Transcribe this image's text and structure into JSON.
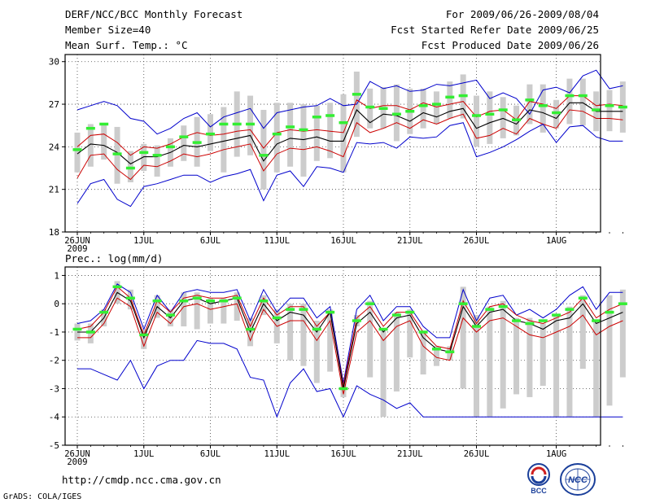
{
  "header": {
    "title": "DERF/NCC/BCC Monthly Forecast",
    "member_size": "Member Size=40",
    "variable": "Mean Surf. Temp.: °C",
    "forecast_period": "For 2009/06/26-2009/08/04",
    "start_date": "Fcst Started Refer Date 2009/06/25",
    "produced_date": "Fcst Produced Date 2009/06/26"
  },
  "footer": {
    "url": "http://cmdp.ncc.cma.gov.cn",
    "credit": "GrADS: COLA/IGES",
    "logo_bcc": "BCC",
    "logo_ncc": "NCC"
  },
  "colors": {
    "envelope": "#0000cc",
    "spread": "#cc0000",
    "mean": "#000000",
    "obs": "#33ee33",
    "box": "#cccccc"
  },
  "chart_data": [
    {
      "type": "line",
      "title": "Mean Surf. Temp.: °C",
      "ylim": [
        18,
        30.5
      ],
      "yticks": [
        18,
        21,
        24,
        27,
        30
      ],
      "x_ticks": [
        {
          "day": 0,
          "label": "26JUN",
          "sub": "2009"
        },
        {
          "day": 5,
          "label": "1JUL"
        },
        {
          "day": 10,
          "label": "6JUL"
        },
        {
          "day": 15,
          "label": "11JUL"
        },
        {
          "day": 20,
          "label": "16JUL"
        },
        {
          "day": 25,
          "label": "21JUL"
        },
        {
          "day": 30,
          "label": "26JUL"
        },
        {
          "day": 36,
          "label": "1AUG"
        }
      ],
      "series": [
        {
          "name": "max",
          "values": [
            26.6,
            26.9,
            27.2,
            26.9,
            26.0,
            25.8,
            24.9,
            25.3,
            26.0,
            26.4,
            25.4,
            26.1,
            26.4,
            26.7,
            25.3,
            26.4,
            26.6,
            26.8,
            26.9,
            27.4,
            26.9,
            27.0,
            28.6,
            28.1,
            28.3,
            27.9,
            28.0,
            28.4,
            28.3,
            28.5,
            28.7,
            27.4,
            27.8,
            27.4,
            26.3,
            28.0,
            28.2,
            27.8,
            29.0,
            29.4,
            28.1,
            28.3
          ]
        },
        {
          "name": "upper",
          "values": [
            24.0,
            24.8,
            24.9,
            24.3,
            23.4,
            24.0,
            23.9,
            24.2,
            24.7,
            25.0,
            24.8,
            24.9,
            25.1,
            25.2,
            23.9,
            25.0,
            25.2,
            25.1,
            25.2,
            25.1,
            25.0,
            27.3,
            26.7,
            26.9,
            26.9,
            26.6,
            27.1,
            26.8,
            27.0,
            27.2,
            26.1,
            26.5,
            26.6,
            25.9,
            27.2,
            27.0,
            26.7,
            27.6,
            27.6,
            26.9,
            27.0,
            26.9
          ]
        },
        {
          "name": "mean",
          "values": [
            23.5,
            24.2,
            24.1,
            23.6,
            22.8,
            23.3,
            23.3,
            23.6,
            24.1,
            24.0,
            24.2,
            24.4,
            24.6,
            24.8,
            23.0,
            24.2,
            24.6,
            24.5,
            24.7,
            24.4,
            24.4,
            26.6,
            25.7,
            26.3,
            26.2,
            25.8,
            26.4,
            26.1,
            26.5,
            26.7,
            25.3,
            25.7,
            26.0,
            25.6,
            26.6,
            26.4,
            26.0,
            27.1,
            27.1,
            26.5,
            26.5,
            26.5
          ]
        },
        {
          "name": "lower",
          "values": [
            21.8,
            23.4,
            23.5,
            22.4,
            21.7,
            22.7,
            22.6,
            23.0,
            23.5,
            23.3,
            23.5,
            23.8,
            24.0,
            24.2,
            22.3,
            23.5,
            23.9,
            23.8,
            24.0,
            23.7,
            23.3,
            25.7,
            25.0,
            25.3,
            25.7,
            25.3,
            25.9,
            25.6,
            26.0,
            26.3,
            24.6,
            24.8,
            25.3,
            24.9,
            26.0,
            25.6,
            25.3,
            26.6,
            26.5,
            26.0,
            26.0,
            25.9
          ]
        },
        {
          "name": "min",
          "values": [
            20.0,
            21.4,
            21.7,
            20.3,
            19.8,
            21.2,
            21.4,
            21.7,
            22.0,
            22.0,
            21.5,
            21.9,
            22.1,
            22.4,
            20.2,
            22.0,
            22.3,
            21.2,
            22.6,
            22.5,
            22.2,
            24.3,
            24.2,
            24.3,
            23.9,
            24.7,
            24.6,
            24.7,
            25.5,
            25.7,
            23.3,
            23.6,
            24.0,
            24.5,
            25.1,
            25.6,
            24.3,
            25.4,
            25.5,
            24.7,
            24.4,
            24.4
          ]
        },
        {
          "name": "obs",
          "values": [
            23.8,
            25.3,
            25.6,
            23.5,
            22.5,
            23.6,
            23.4,
            24.0,
            24.7,
            24.3,
            24.9,
            25.6,
            25.6,
            25.6,
            23.4,
            24.9,
            25.4,
            25.2,
            26.1,
            26.2,
            25.7,
            27.7,
            26.8,
            26.7,
            26.3,
            26.5,
            26.9,
            27.0,
            27.5,
            27.6,
            26.2,
            26.3,
            26.6,
            25.9,
            27.3,
            26.9,
            26.4,
            27.6,
            27.6,
            26.6,
            26.9,
            26.8
          ]
        }
      ],
      "boxes": [
        [
          22.2,
          25.0
        ],
        [
          22.6,
          25.6
        ],
        [
          23.1,
          25.6
        ],
        [
          21.4,
          25.4
        ],
        [
          21.5,
          23.7
        ],
        [
          22.3,
          24.2
        ],
        [
          21.9,
          24.1
        ],
        [
          22.6,
          24.6
        ],
        [
          23.0,
          25.5
        ],
        [
          22.6,
          26.1
        ],
        [
          23.7,
          26.3
        ],
        [
          22.2,
          26.8
        ],
        [
          23.3,
          27.9
        ],
        [
          23.4,
          27.6
        ],
        [
          21.0,
          26.6
        ],
        [
          22.2,
          27.1
        ],
        [
          22.6,
          27.1
        ],
        [
          21.9,
          27.0
        ],
        [
          23.0,
          26.9
        ],
        [
          23.2,
          27.1
        ],
        [
          22.2,
          27.7
        ],
        [
          24.7,
          29.3
        ],
        [
          25.3,
          28.1
        ],
        [
          25.3,
          28.2
        ],
        [
          24.4,
          28.4
        ],
        [
          24.9,
          28.1
        ],
        [
          25.3,
          28.1
        ],
        [
          25.6,
          27.9
        ],
        [
          26.0,
          28.6
        ],
        [
          26.0,
          29.1
        ],
        [
          24.0,
          27.6
        ],
        [
          24.2,
          27.9
        ],
        [
          24.6,
          27.5
        ],
        [
          24.8,
          26.9
        ],
        [
          25.6,
          28.4
        ],
        [
          25.0,
          28.4
        ],
        [
          25.3,
          27.3
        ],
        [
          25.6,
          28.8
        ],
        [
          25.5,
          28.8
        ],
        [
          25.1,
          27.9
        ],
        [
          25.1,
          28.0
        ],
        [
          25.0,
          28.6
        ]
      ]
    },
    {
      "type": "line",
      "title": "Prec.: log(mm/d)",
      "ylim": [
        -5,
        1.3
      ],
      "yticks": [
        -5,
        -4,
        -3,
        -2,
        -1,
        0,
        1
      ],
      "x_ticks": [
        {
          "day": 0,
          "label": "26JUN",
          "sub": "2009"
        },
        {
          "day": 5,
          "label": "1JUL"
        },
        {
          "day": 10,
          "label": "6JUL"
        },
        {
          "day": 15,
          "label": "11JUL"
        },
        {
          "day": 20,
          "label": "16JUL"
        },
        {
          "day": 25,
          "label": "21JUL"
        },
        {
          "day": 30,
          "label": "26JUL"
        },
        {
          "day": 36,
          "label": "1AUG"
        }
      ],
      "series": [
        {
          "name": "max",
          "values": [
            -0.7,
            -0.6,
            -0.2,
            0.7,
            0.4,
            -0.9,
            0.3,
            -0.3,
            0.4,
            0.5,
            0.4,
            0.4,
            0.5,
            -0.6,
            0.5,
            -0.3,
            0.2,
            0.2,
            -0.5,
            -0.1,
            -2.8,
            -0.2,
            0.3,
            -0.6,
            -0.1,
            -0.1,
            -0.8,
            -1.2,
            -1.2,
            0.5,
            -0.6,
            0.2,
            0.3,
            -0.4,
            -0.2,
            -0.5,
            -0.2,
            0.3,
            0.6,
            -0.2,
            0.4,
            0.4
          ]
        },
        {
          "name": "upper",
          "values": [
            -0.9,
            -0.8,
            -0.3,
            0.6,
            0.2,
            -1.1,
            0.1,
            -0.3,
            0.2,
            0.3,
            0.2,
            0.2,
            0.3,
            -0.8,
            0.2,
            -0.4,
            -0.1,
            -0.1,
            -0.8,
            -0.3,
            -2.9,
            -0.5,
            -0.1,
            -0.8,
            -0.3,
            -0.3,
            -1.0,
            -1.5,
            -1.6,
            0.1,
            -0.7,
            -0.1,
            0.0,
            -0.4,
            -0.6,
            -0.7,
            -0.5,
            -0.3,
            0.2,
            -0.5,
            -0.2,
            0.0
          ]
        },
        {
          "name": "mean",
          "values": [
            -1.0,
            -1.0,
            -0.5,
            0.4,
            0.1,
            -1.2,
            -0.1,
            -0.5,
            0.1,
            0.2,
            0.0,
            0.1,
            0.2,
            -1.0,
            0.0,
            -0.6,
            -0.3,
            -0.4,
            -1.0,
            -0.3,
            -3.0,
            -0.7,
            -0.3,
            -1.0,
            -0.5,
            -0.4,
            -1.2,
            -1.6,
            -1.7,
            -0.1,
            -0.8,
            -0.3,
            -0.2,
            -0.6,
            -0.7,
            -0.9,
            -0.6,
            -0.5,
            0.0,
            -0.7,
            -0.5,
            -0.3
          ]
        },
        {
          "name": "lower",
          "values": [
            -1.2,
            -1.2,
            -0.7,
            0.2,
            -0.1,
            -1.5,
            -0.3,
            -0.7,
            -0.1,
            0.0,
            -0.2,
            -0.1,
            0.0,
            -1.3,
            -0.2,
            -0.8,
            -0.6,
            -0.6,
            -1.3,
            -0.6,
            -3.2,
            -1.0,
            -0.6,
            -1.3,
            -0.8,
            -0.6,
            -1.5,
            -1.9,
            -2.0,
            -0.5,
            -1.0,
            -0.6,
            -0.5,
            -0.8,
            -1.1,
            -1.2,
            -1.0,
            -0.8,
            -0.4,
            -1.1,
            -0.8,
            -0.6
          ]
        },
        {
          "name": "min",
          "values": [
            -2.3,
            -2.3,
            -2.5,
            -2.7,
            -2.0,
            -3.0,
            -2.2,
            -2.0,
            -2.0,
            -1.3,
            -1.4,
            -1.4,
            -1.6,
            -2.6,
            -2.7,
            -4.0,
            -2.8,
            -2.3,
            -3.1,
            -3.0,
            -4.0,
            -2.9,
            -3.2,
            -3.4,
            -3.7,
            -3.5,
            -4.0,
            -4.0,
            -4.0,
            -4.0,
            -4.0,
            -4.0,
            -4.0,
            -4.0,
            -4.0,
            -4.0,
            -4.0,
            -4.0,
            -4.0,
            -4.0,
            -4.0,
            -4.0
          ]
        },
        {
          "name": "obs",
          "values": [
            -0.9,
            -1.0,
            -0.3,
            0.6,
            0.2,
            -1.1,
            0.1,
            -0.4,
            0.1,
            0.2,
            0.1,
            0.1,
            0.2,
            -0.9,
            0.1,
            -0.5,
            -0.2,
            -0.2,
            -0.9,
            -0.3,
            -3.0,
            -0.6,
            0.0,
            -0.9,
            -0.4,
            -0.3,
            -1.0,
            -1.6,
            -1.7,
            0.0,
            -0.8,
            -0.2,
            -0.1,
            -0.6,
            -0.7,
            -0.6,
            -0.4,
            -0.2,
            0.2,
            -0.6,
            -0.3,
            0.0
          ]
        }
      ],
      "boxes": [
        [
          -1.3,
          -0.7
        ],
        [
          -1.4,
          -0.7
        ],
        [
          -0.8,
          -0.2
        ],
        [
          0.0,
          0.8
        ],
        [
          -0.2,
          0.5
        ],
        [
          -1.6,
          -0.9
        ],
        [
          -0.5,
          0.3
        ],
        [
          -0.8,
          -0.2
        ],
        [
          -0.8,
          0.4
        ],
        [
          -0.9,
          0.4
        ],
        [
          -0.7,
          0.2
        ],
        [
          -0.7,
          0.2
        ],
        [
          -0.6,
          0.4
        ],
        [
          -1.5,
          -0.5
        ],
        [
          -0.4,
          0.3
        ],
        [
          -1.4,
          -0.2
        ],
        [
          -2.0,
          0.0
        ],
        [
          -2.2,
          0.0
        ],
        [
          -2.8,
          -0.6
        ],
        [
          -2.4,
          -0.2
        ],
        [
          -3.3,
          -2.7
        ],
        [
          -0.8,
          -0.4
        ],
        [
          -2.6,
          0.1
        ],
        [
          -4.0,
          -0.9
        ],
        [
          -3.1,
          -0.3
        ],
        [
          -1.9,
          -0.2
        ],
        [
          -2.5,
          -1.0
        ],
        [
          -2.2,
          -1.5
        ],
        [
          -2.0,
          -1.5
        ],
        [
          -3.0,
          0.6
        ],
        [
          -4.0,
          -0.4
        ],
        [
          -4.0,
          -0.1
        ],
        [
          -3.7,
          0.1
        ],
        [
          -3.2,
          -0.5
        ],
        [
          -3.3,
          -0.5
        ],
        [
          -2.9,
          -0.7
        ],
        [
          -4.0,
          -0.4
        ],
        [
          -4.0,
          -0.1
        ],
        [
          -2.3,
          0.3
        ],
        [
          -4.0,
          -0.6
        ],
        [
          -3.6,
          0.3
        ],
        [
          -2.6,
          0.5
        ]
      ]
    }
  ]
}
